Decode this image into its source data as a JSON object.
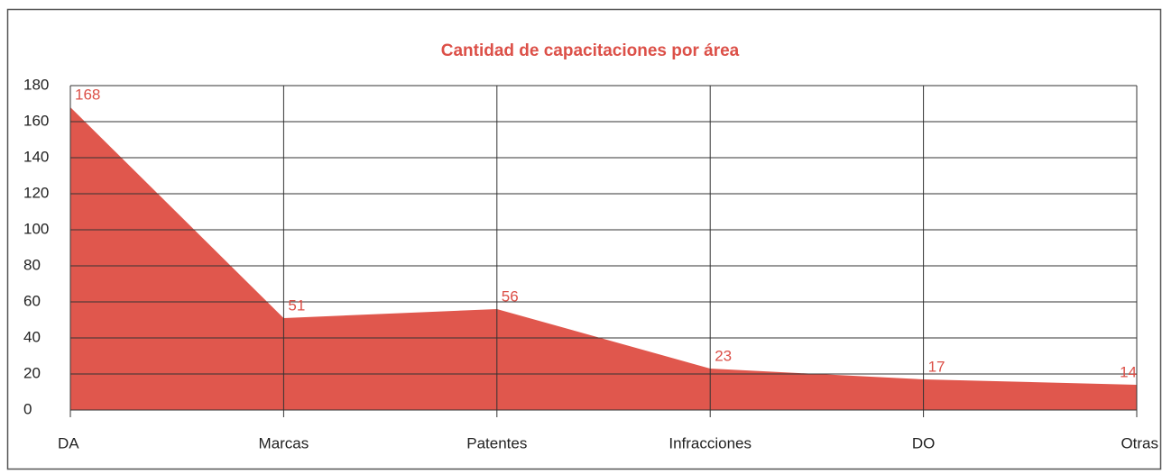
{
  "chart_data": {
    "type": "area",
    "title": "Cantidad de capacitaciones por área",
    "categories": [
      "DA",
      "Marcas",
      "Patentes",
      "Infracciones",
      "DO",
      "Otras"
    ],
    "values": [
      168,
      51,
      56,
      23,
      17,
      14
    ],
    "color": "#e0574d",
    "ylim": [
      0,
      180
    ],
    "yticks": [
      0,
      20,
      40,
      60,
      80,
      100,
      120,
      140,
      160,
      180
    ],
    "grid": true
  }
}
